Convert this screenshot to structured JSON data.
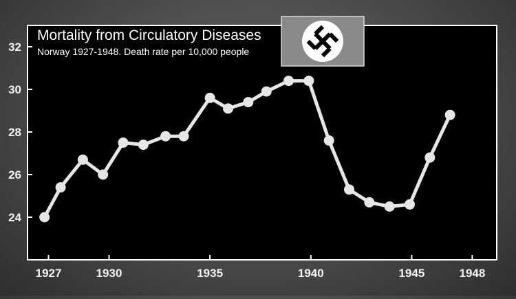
{
  "chart_data": {
    "type": "line",
    "title": "Mortality from Circulatory Diseases",
    "subtitle": "Norway 1927-1948. Death rate per 10,000 people",
    "xlabel": "",
    "ylabel": "",
    "xlim": [
      1926.3,
      1948.6
    ],
    "ylim": [
      22.0,
      33.0
    ],
    "x_ticks": [
      1927,
      1930,
      1935,
      1940,
      1945,
      1948
    ],
    "y_ticks": [
      24,
      26,
      28,
      30,
      32
    ],
    "grid": false,
    "legend": "none",
    "colors": {
      "panel": "#000000",
      "frame": "#ffffff",
      "line": "#e6e6e6",
      "marker": "#e6e6e6",
      "emblem_bg": "#8a8a8a",
      "emblem_disc": "#ffffff",
      "emblem_symbol": "#000000"
    },
    "x": [
      1926.8,
      1927.6,
      1928.7,
      1929.7,
      1930.7,
      1931.7,
      1932.8,
      1933.7,
      1935.0,
      1935.9,
      1936.9,
      1937.8,
      1938.9,
      1939.9,
      1940.9,
      1941.9,
      1942.9,
      1943.9,
      1944.9,
      1945.9,
      1946.9
    ],
    "series": [
      {
        "values": [
          24.0,
          25.4,
          26.7,
          26.0,
          27.5,
          27.4,
          27.8,
          27.8,
          29.6,
          29.1,
          29.4,
          29.9,
          30.4,
          30.4,
          27.6,
          25.3,
          24.7,
          24.5,
          24.6,
          26.8,
          28.8
        ]
      }
    ],
    "emblem": "swastika-flag"
  }
}
